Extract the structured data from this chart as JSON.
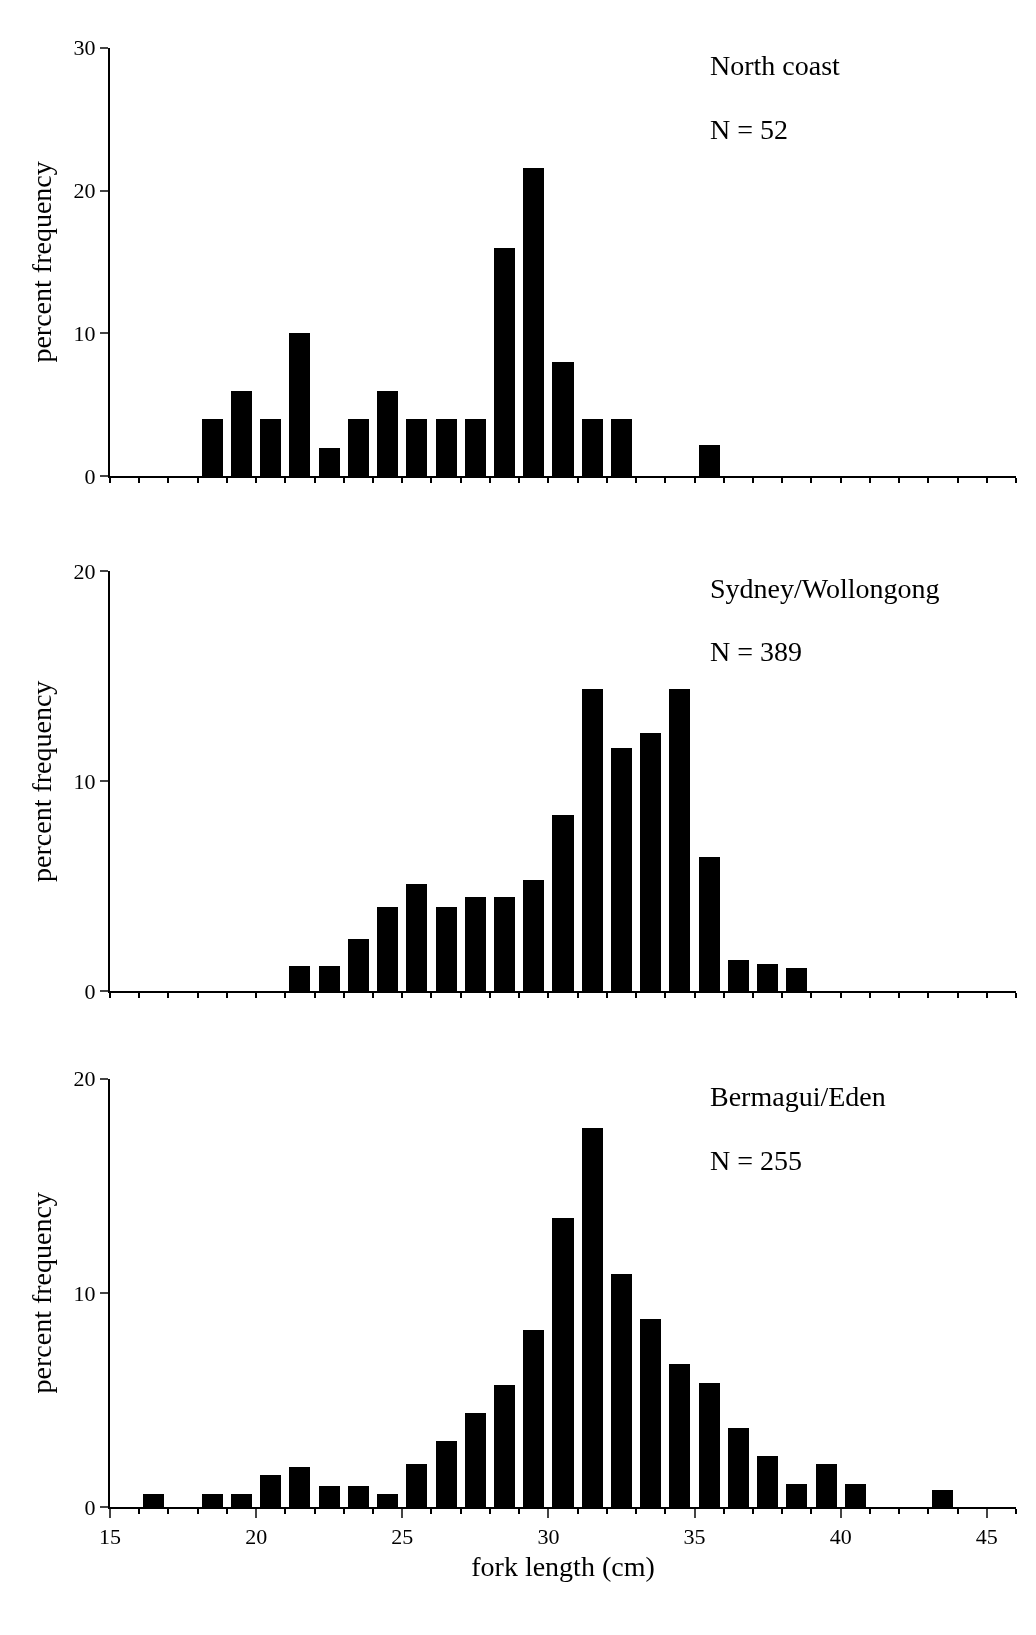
{
  "chart_data": [
    {
      "type": "histogram",
      "ylabel": "percent frequency",
      "annotations": [
        "North coast",
        "N = 52"
      ],
      "color": "#000000",
      "bins": [
        18,
        19,
        20,
        21,
        22,
        23,
        24,
        25,
        26,
        27,
        28,
        29,
        30,
        31,
        32,
        33,
        34,
        35,
        36
      ],
      "values": [
        4,
        6,
        4,
        10,
        2,
        4,
        6,
        4,
        4,
        4,
        16,
        21.6,
        8,
        4,
        4,
        0,
        0,
        2.2
      ],
      "xlim": [
        15,
        46
      ],
      "xticks": [
        {
          "value": 15,
          "label": null
        },
        {
          "value": 20,
          "label": null
        },
        {
          "value": 25,
          "label": null
        },
        {
          "value": 30,
          "label": null
        },
        {
          "value": 35,
          "label": null
        },
        {
          "value": 40,
          "label": null
        },
        {
          "value": 45,
          "label": null
        }
      ],
      "ylim": [
        0,
        30
      ],
      "yticks": [
        0,
        10,
        20,
        30
      ],
      "tick_labels": "y"
    },
    {
      "type": "histogram",
      "ylabel": "percent frequency",
      "annotations": [
        "Sydney/Wollongong",
        "N = 389"
      ],
      "color": "#000000",
      "bins": [
        21,
        22,
        23,
        24,
        25,
        26,
        27,
        28,
        29,
        30,
        31,
        32,
        33,
        34,
        35,
        36,
        37,
        38,
        39
      ],
      "values": [
        1.2,
        1.2,
        2.5,
        4,
        5.1,
        4,
        4.5,
        4.5,
        5.3,
        8.4,
        14.4,
        11.6,
        12.3,
        14.4,
        6.4,
        1.5,
        1.3,
        1.1
      ],
      "xlim": [
        15,
        46
      ],
      "xticks": [
        {
          "value": 15,
          "label": null
        },
        {
          "value": 20,
          "label": null
        },
        {
          "value": 25,
          "label": null
        },
        {
          "value": 30,
          "label": null
        },
        {
          "value": 35,
          "label": null
        },
        {
          "value": 40,
          "label": null
        },
        {
          "value": 45,
          "label": null
        }
      ],
      "ylim": [
        0,
        20
      ],
      "yticks": [
        0,
        10,
        20
      ],
      "tick_labels": "y"
    },
    {
      "type": "histogram",
      "xlabel": "fork length (cm)",
      "ylabel": "percent frequency",
      "annotations": [
        "Bermagui/Eden",
        "N = 255"
      ],
      "color": "#000000",
      "bins": [
        16,
        17,
        18,
        19,
        20,
        21,
        22,
        23,
        24,
        25,
        26,
        27,
        28,
        29,
        30,
        31,
        32,
        33,
        34,
        35,
        36,
        37,
        38,
        39,
        40,
        41,
        42,
        43,
        44
      ],
      "values": [
        0.6,
        0,
        0.6,
        0.6,
        1.5,
        1.9,
        1,
        1,
        0.6,
        2,
        3.1,
        4.4,
        5.7,
        8.3,
        13.5,
        17.7,
        10.9,
        8.8,
        6.7,
        5.8,
        3.7,
        2.4,
        1.1,
        2,
        1.1,
        0,
        0,
        0.8
      ],
      "xlim": [
        15,
        46
      ],
      "xticks": [
        15,
        20,
        25,
        30,
        35,
        40,
        45
      ],
      "ylim": [
        0,
        20
      ],
      "yticks": [
        0,
        10,
        20
      ]
    }
  ]
}
